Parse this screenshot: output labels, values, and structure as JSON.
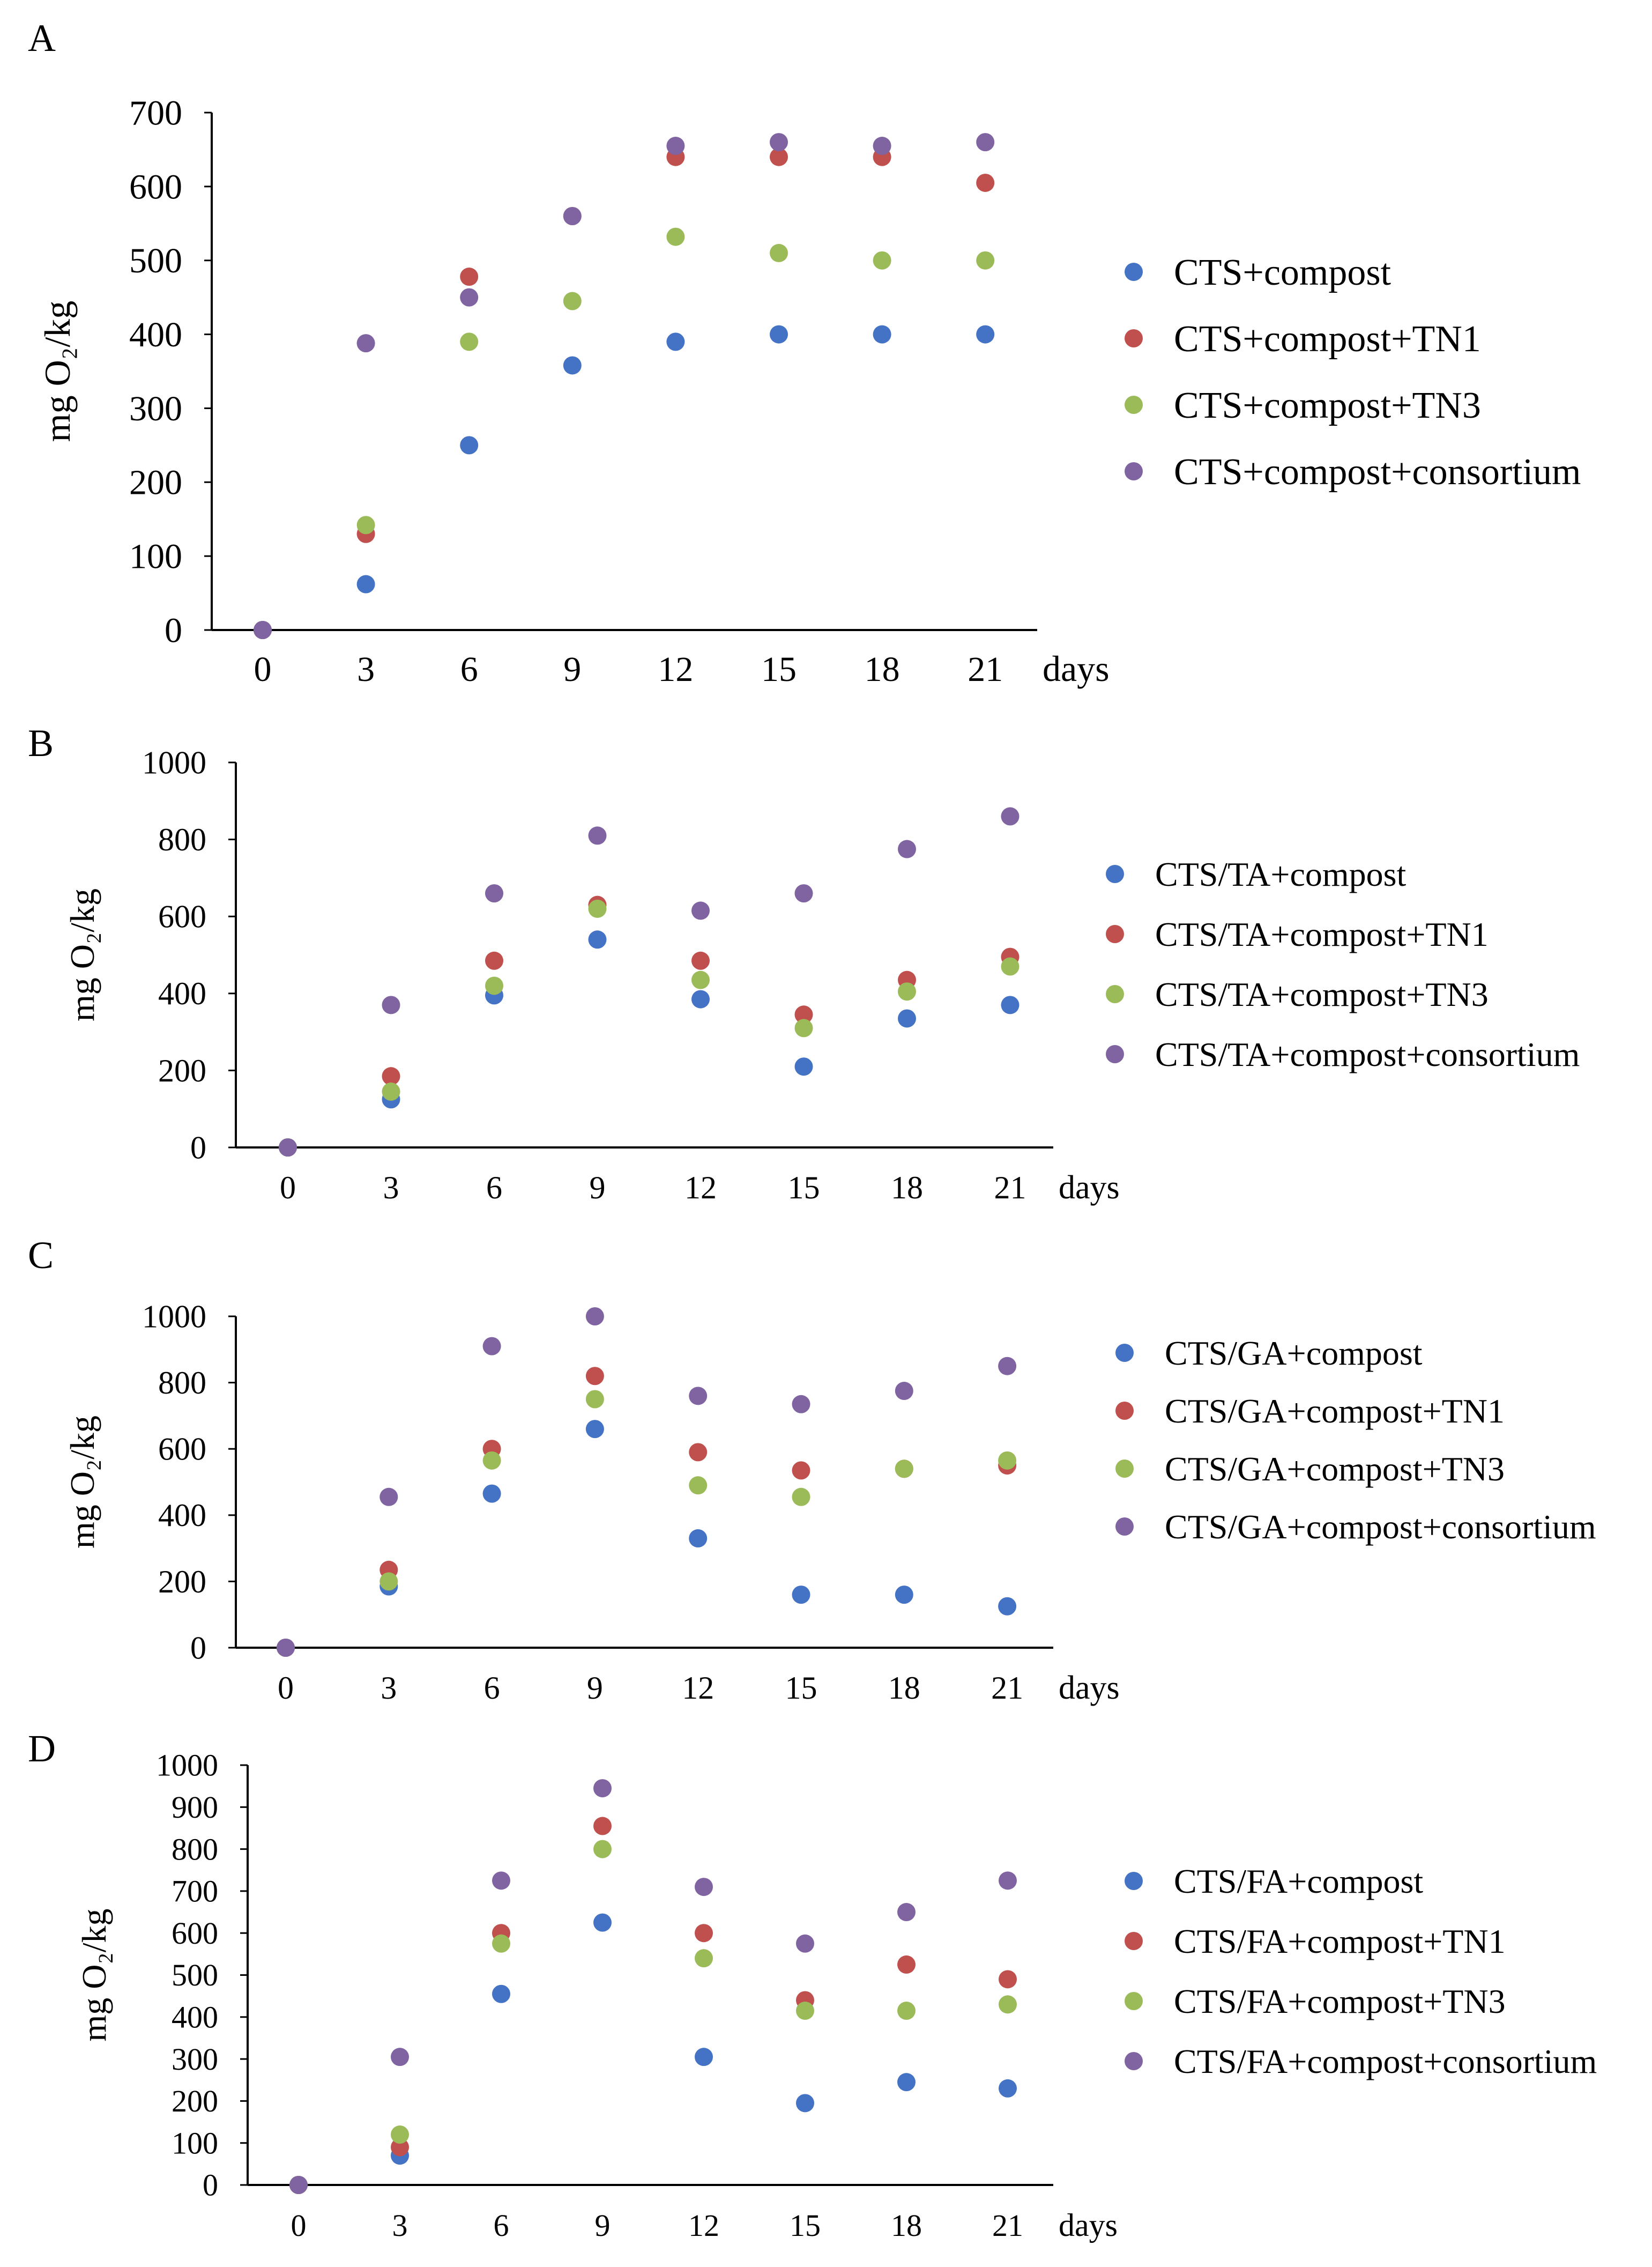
{
  "chart_data": [
    {
      "type": "scatter",
      "panel_label": "A",
      "ylabel": "mg O₂/kg",
      "xlabel": "days",
      "x": [
        0,
        3,
        6,
        9,
        12,
        15,
        18,
        21
      ],
      "ylim": [
        0,
        700
      ],
      "yticks": [
        0,
        100,
        200,
        300,
        400,
        500,
        600,
        700
      ],
      "legend_position": "right",
      "series": [
        {
          "name": "CTS+compost",
          "color": "#4472C4",
          "values": [
            0,
            62,
            250,
            358,
            390,
            400,
            400,
            400
          ]
        },
        {
          "name": "CTS+compost+TN1",
          "color": "#C0504D",
          "values": [
            0,
            130,
            478,
            560,
            640,
            640,
            640,
            605
          ]
        },
        {
          "name": "CTS+compost+TN3",
          "color": "#9BBB59",
          "values": [
            0,
            142,
            390,
            445,
            532,
            510,
            500,
            500
          ]
        },
        {
          "name": "CTS+compost+consortium",
          "color": "#8064A2",
          "values": [
            0,
            388,
            450,
            560,
            655,
            660,
            655,
            660
          ]
        }
      ]
    },
    {
      "type": "scatter",
      "panel_label": "B",
      "ylabel": "mg O₂/kg",
      "xlabel": "days",
      "x": [
        0,
        3,
        6,
        9,
        12,
        15,
        18,
        21
      ],
      "ylim": [
        0,
        1000
      ],
      "yticks": [
        0,
        200,
        400,
        600,
        800,
        1000
      ],
      "legend_position": "right",
      "series": [
        {
          "name": "CTS/TA+compost",
          "color": "#4472C4",
          "values": [
            0,
            125,
            395,
            540,
            385,
            210,
            335,
            370
          ]
        },
        {
          "name": "CTS/TA+compost+TN1",
          "color": "#C0504D",
          "values": [
            0,
            185,
            485,
            630,
            485,
            345,
            435,
            495
          ]
        },
        {
          "name": "CTS/TA+compost+TN3",
          "color": "#9BBB59",
          "values": [
            0,
            145,
            420,
            620,
            435,
            310,
            405,
            470
          ]
        },
        {
          "name": "CTS/TA+compost+consortium",
          "color": "#8064A2",
          "values": [
            0,
            370,
            660,
            810,
            615,
            660,
            775,
            860
          ]
        }
      ]
    },
    {
      "type": "scatter",
      "panel_label": "C",
      "ylabel": "mg O₂/kg",
      "xlabel": "days",
      "x": [
        0,
        3,
        6,
        9,
        12,
        15,
        18,
        21
      ],
      "ylim": [
        0,
        1000
      ],
      "yticks": [
        0,
        200,
        400,
        600,
        800,
        1000
      ],
      "legend_position": "right",
      "series": [
        {
          "name": "CTS/GA+compost",
          "color": "#4472C4",
          "values": [
            0,
            185,
            465,
            660,
            330,
            160,
            160,
            125
          ]
        },
        {
          "name": "CTS/GA+compost+TN1",
          "color": "#C0504D",
          "values": [
            0,
            235,
            600,
            820,
            590,
            535,
            540,
            550
          ]
        },
        {
          "name": "CTS/GA+compost+TN3",
          "color": "#9BBB59",
          "values": [
            0,
            200,
            565,
            750,
            490,
            455,
            540,
            565
          ]
        },
        {
          "name": "CTS/GA+compost+consortium",
          "color": "#8064A2",
          "values": [
            0,
            455,
            910,
            1000,
            760,
            735,
            775,
            850
          ]
        }
      ]
    },
    {
      "type": "scatter",
      "panel_label": "D",
      "ylabel": "mg O₂/kg",
      "xlabel": "days",
      "x": [
        0,
        3,
        6,
        9,
        12,
        15,
        18,
        21
      ],
      "ylim": [
        0,
        1000
      ],
      "yticks": [
        0,
        100,
        200,
        300,
        400,
        500,
        600,
        700,
        800,
        900,
        1000
      ],
      "legend_position": "right",
      "series": [
        {
          "name": "CTS/FA+compost",
          "color": "#4472C4",
          "values": [
            0,
            70,
            455,
            625,
            305,
            195,
            245,
            230
          ]
        },
        {
          "name": "CTS/FA+compost+TN1",
          "color": "#C0504D",
          "values": [
            0,
            90,
            600,
            855,
            600,
            440,
            525,
            490
          ]
        },
        {
          "name": "CTS/FA+compost+TN3",
          "color": "#9BBB59",
          "values": [
            0,
            120,
            575,
            800,
            540,
            415,
            415,
            430
          ]
        },
        {
          "name": "CTS/FA+compost+consortium",
          "color": "#8064A2",
          "values": [
            0,
            305,
            725,
            945,
            710,
            575,
            650,
            725
          ]
        }
      ]
    }
  ]
}
